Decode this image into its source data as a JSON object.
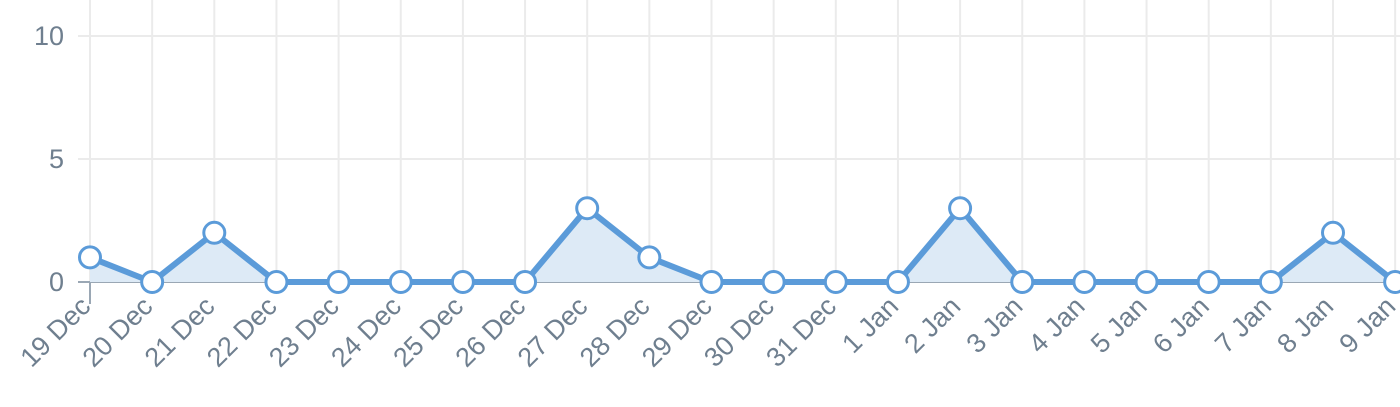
{
  "chart_data": {
    "type": "area",
    "title": "",
    "xlabel": "",
    "ylabel": "",
    "categories": [
      "19 Dec",
      "20 Dec",
      "21 Dec",
      "22 Dec",
      "23 Dec",
      "24 Dec",
      "25 Dec",
      "26 Dec",
      "27 Dec",
      "28 Dec",
      "29 Dec",
      "30 Dec",
      "31 Dec",
      "1 Jan",
      "2 Jan",
      "3 Jan",
      "4 Jan",
      "5 Jan",
      "6 Jan",
      "7 Jan",
      "8 Jan",
      "9 Jan"
    ],
    "series": [
      {
        "values": [
          1,
          0,
          2,
          0,
          0,
          0,
          0,
          0,
          3,
          1,
          0,
          0,
          0,
          0,
          3,
          0,
          0,
          0,
          0,
          0,
          2,
          0
        ]
      }
    ],
    "y_ticks": [
      "0",
      "5",
      "10"
    ],
    "ylim": [
      0,
      10
    ],
    "grid": true,
    "legend": "none",
    "colors": {
      "line": "#5b9bd9",
      "fill": "#ddeaf6",
      "point_fill": "#ffffff",
      "grid": "#ebebeb",
      "axis": "#9aa7b4",
      "tick_text": "#6f7f8f"
    }
  }
}
